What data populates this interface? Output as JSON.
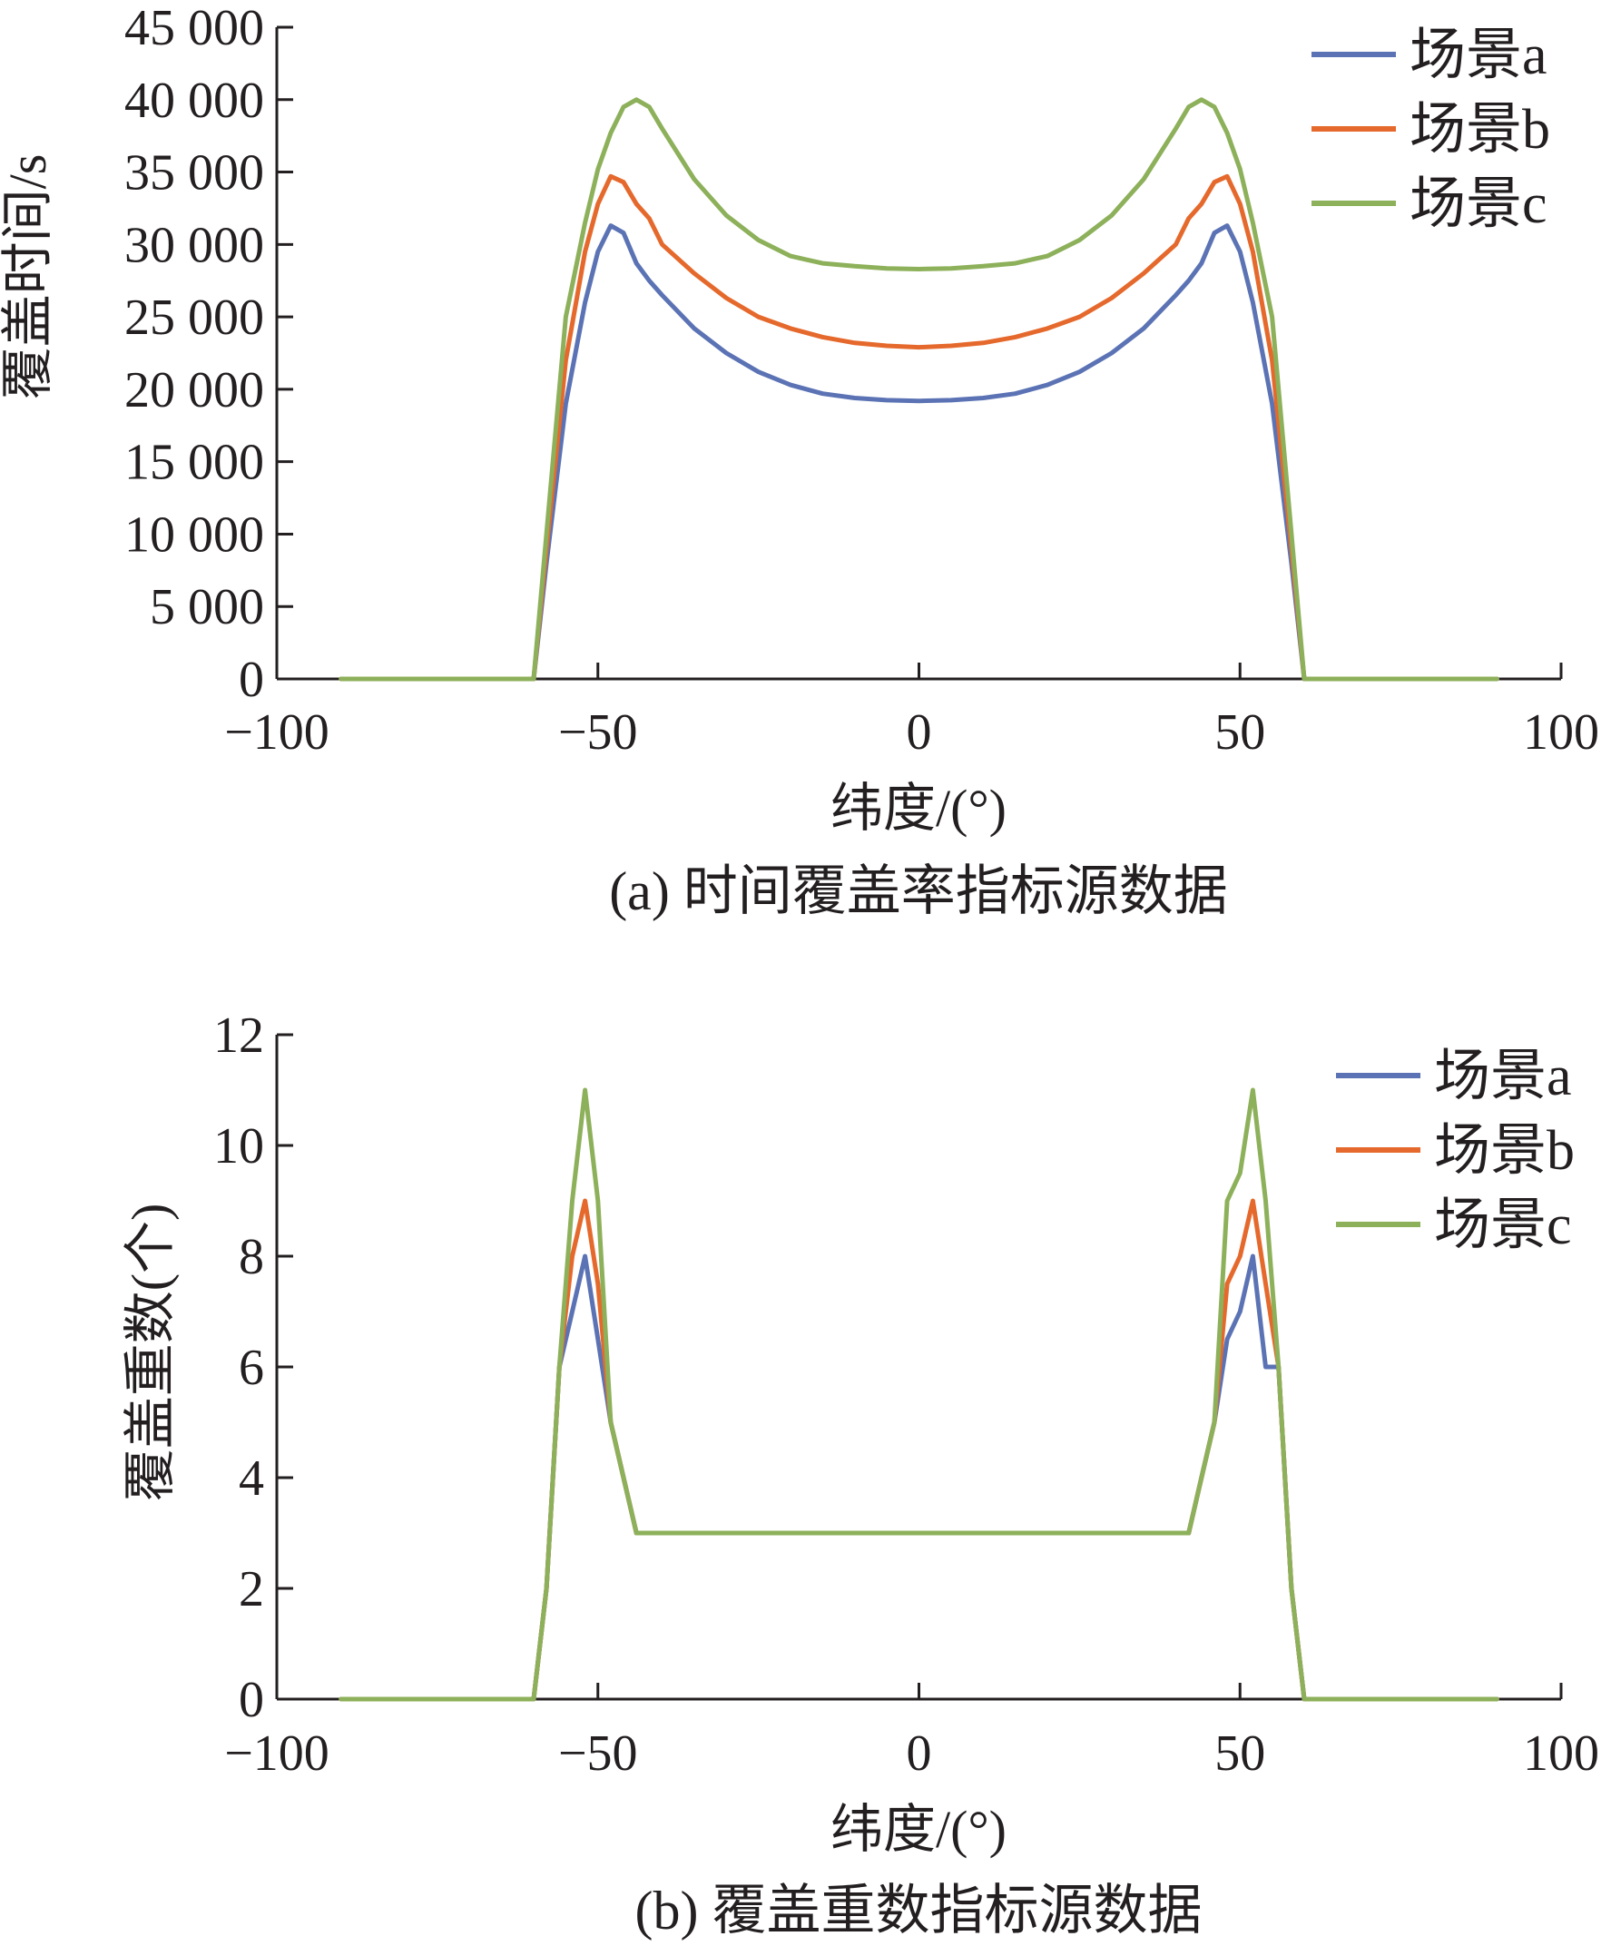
{
  "chart_data": [
    {
      "type": "line",
      "caption": "(a) 时间覆盖率指标源数据",
      "xlabel": "纬度/(°)",
      "ylabel": "覆盖时间/s",
      "xlim": [
        -100,
        100
      ],
      "ylim": [
        0,
        45000
      ],
      "xticks": [
        -100,
        -50,
        0,
        50,
        100
      ],
      "xtick_labels": [
        "−100",
        "−50",
        "0",
        "50",
        "100"
      ],
      "yticks": [
        0,
        5000,
        10000,
        15000,
        20000,
        25000,
        30000,
        35000,
        40000,
        45000
      ],
      "ytick_labels": [
        "0",
        "5 000",
        "10 000",
        "15 000",
        "20 000",
        "25 000",
        "30 000",
        "35 000",
        "40 000",
        "45 000"
      ],
      "legend_position": "top-right",
      "grid": false,
      "series": [
        {
          "name": "场景a",
          "color": "#5b73b4",
          "x": [
            -90,
            -80,
            -70,
            -60,
            -58,
            -55,
            -52,
            -50,
            -48,
            -46,
            -44,
            -42,
            -40,
            -35,
            -30,
            -25,
            -20,
            -15,
            -10,
            -5,
            0,
            5,
            10,
            15,
            20,
            25,
            30,
            35,
            40,
            42,
            44,
            46,
            48,
            50,
            52,
            55,
            58,
            60,
            70,
            80,
            90
          ],
          "y": [
            0,
            0,
            0,
            0,
            8000,
            19000,
            26000,
            29500,
            31300,
            30800,
            28700,
            27500,
            26500,
            24200,
            22500,
            21200,
            20300,
            19700,
            19400,
            19250,
            19200,
            19250,
            19400,
            19700,
            20300,
            21200,
            22500,
            24200,
            26500,
            27500,
            28700,
            30800,
            31300,
            29500,
            26000,
            19000,
            8000,
            0,
            0,
            0,
            0
          ]
        },
        {
          "name": "场景b",
          "color": "#e5692c",
          "x": [
            -90,
            -80,
            -70,
            -60,
            -58,
            -55,
            -52,
            -50,
            -48,
            -46,
            -44,
            -42,
            -40,
            -35,
            -30,
            -25,
            -20,
            -15,
            -10,
            -5,
            0,
            5,
            10,
            15,
            20,
            25,
            30,
            35,
            40,
            42,
            44,
            46,
            48,
            50,
            52,
            55,
            58,
            60,
            70,
            80,
            90
          ],
          "y": [
            0,
            0,
            0,
            0,
            9000,
            22000,
            29500,
            32800,
            34700,
            34300,
            32800,
            31800,
            30000,
            28000,
            26300,
            25000,
            24200,
            23600,
            23200,
            23000,
            22900,
            23000,
            23200,
            23600,
            24200,
            25000,
            26300,
            28000,
            30000,
            31800,
            32800,
            34300,
            34700,
            32800,
            29500,
            22000,
            9000,
            0,
            0,
            0,
            0
          ]
        },
        {
          "name": "场景c",
          "color": "#8db05a",
          "x": [
            -90,
            -80,
            -70,
            -60,
            -58,
            -55,
            -52,
            -50,
            -48,
            -46,
            -44,
            -42,
            -40,
            -35,
            -30,
            -25,
            -20,
            -15,
            -10,
            -5,
            0,
            5,
            10,
            15,
            20,
            25,
            30,
            35,
            40,
            42,
            44,
            46,
            48,
            50,
            52,
            55,
            58,
            60,
            70,
            80,
            90
          ],
          "y": [
            0,
            0,
            0,
            0,
            10000,
            25000,
            31500,
            35200,
            37700,
            39500,
            40000,
            39500,
            38000,
            34500,
            32000,
            30300,
            29200,
            28700,
            28500,
            28350,
            28300,
            28350,
            28500,
            28700,
            29200,
            30300,
            32000,
            34500,
            38000,
            39500,
            40000,
            39500,
            37700,
            35200,
            31500,
            25000,
            10000,
            0,
            0,
            0,
            0
          ]
        }
      ]
    },
    {
      "type": "line",
      "caption": "(b) 覆盖重数指标源数据",
      "xlabel": "纬度/(°)",
      "ylabel": "覆盖重数(个)",
      "xlim": [
        -100,
        100
      ],
      "ylim": [
        0,
        12
      ],
      "xticks": [
        -100,
        -50,
        0,
        50,
        100
      ],
      "xtick_labels": [
        "−100",
        "−50",
        "0",
        "50",
        "100"
      ],
      "yticks": [
        0,
        2,
        4,
        6,
        8,
        10,
        12
      ],
      "ytick_labels": [
        "0",
        "2",
        "4",
        "6",
        "8",
        "10",
        "12"
      ],
      "legend_position": "top-right",
      "grid": false,
      "series": [
        {
          "name": "场景a",
          "color": "#5b73b4",
          "x": [
            -90,
            -80,
            -70,
            -60,
            -58,
            -56,
            -54,
            -52,
            -50,
            -48,
            -46,
            -44,
            -42,
            -40,
            -30,
            -20,
            -10,
            0,
            10,
            20,
            30,
            40,
            42,
            44,
            46,
            48,
            50,
            52,
            54,
            56,
            58,
            60,
            70,
            80,
            90
          ],
          "y": [
            0,
            0,
            0,
            0,
            2,
            6,
            7,
            8,
            6.5,
            5,
            4,
            3,
            3,
            3,
            3,
            3,
            3,
            3,
            3,
            3,
            3,
            3,
            3,
            4,
            5,
            6.5,
            7,
            8,
            6,
            6,
            2,
            0,
            0,
            0,
            0
          ]
        },
        {
          "name": "场景b",
          "color": "#e5692c",
          "x": [
            -90,
            -80,
            -70,
            -60,
            -58,
            -56,
            -54,
            -52,
            -50,
            -48,
            -46,
            -44,
            -42,
            -40,
            -30,
            -20,
            -10,
            0,
            10,
            20,
            30,
            40,
            42,
            44,
            46,
            48,
            50,
            52,
            54,
            56,
            58,
            60,
            70,
            80,
            90
          ],
          "y": [
            0,
            0,
            0,
            0,
            2,
            6,
            8,
            9,
            7.5,
            5,
            4,
            3,
            3,
            3,
            3,
            3,
            3,
            3,
            3,
            3,
            3,
            3,
            3,
            4,
            5,
            7.5,
            8,
            9,
            7.5,
            6,
            2,
            0,
            0,
            0,
            0
          ]
        },
        {
          "name": "场景c",
          "color": "#8db05a",
          "x": [
            -90,
            -80,
            -70,
            -60,
            -58,
            -56,
            -54,
            -52,
            -50,
            -48,
            -46,
            -44,
            -42,
            -40,
            -30,
            -20,
            -10,
            0,
            10,
            20,
            30,
            40,
            42,
            44,
            46,
            48,
            50,
            52,
            54,
            56,
            58,
            60,
            70,
            80,
            90
          ],
          "y": [
            0,
            0,
            0,
            0,
            2,
            6,
            9,
            11,
            9,
            5,
            4,
            3,
            3,
            3,
            3,
            3,
            3,
            3,
            3,
            3,
            3,
            3,
            3,
            4,
            5,
            9,
            9.5,
            11,
            9,
            6,
            2,
            0,
            0,
            0,
            0
          ]
        }
      ]
    }
  ]
}
